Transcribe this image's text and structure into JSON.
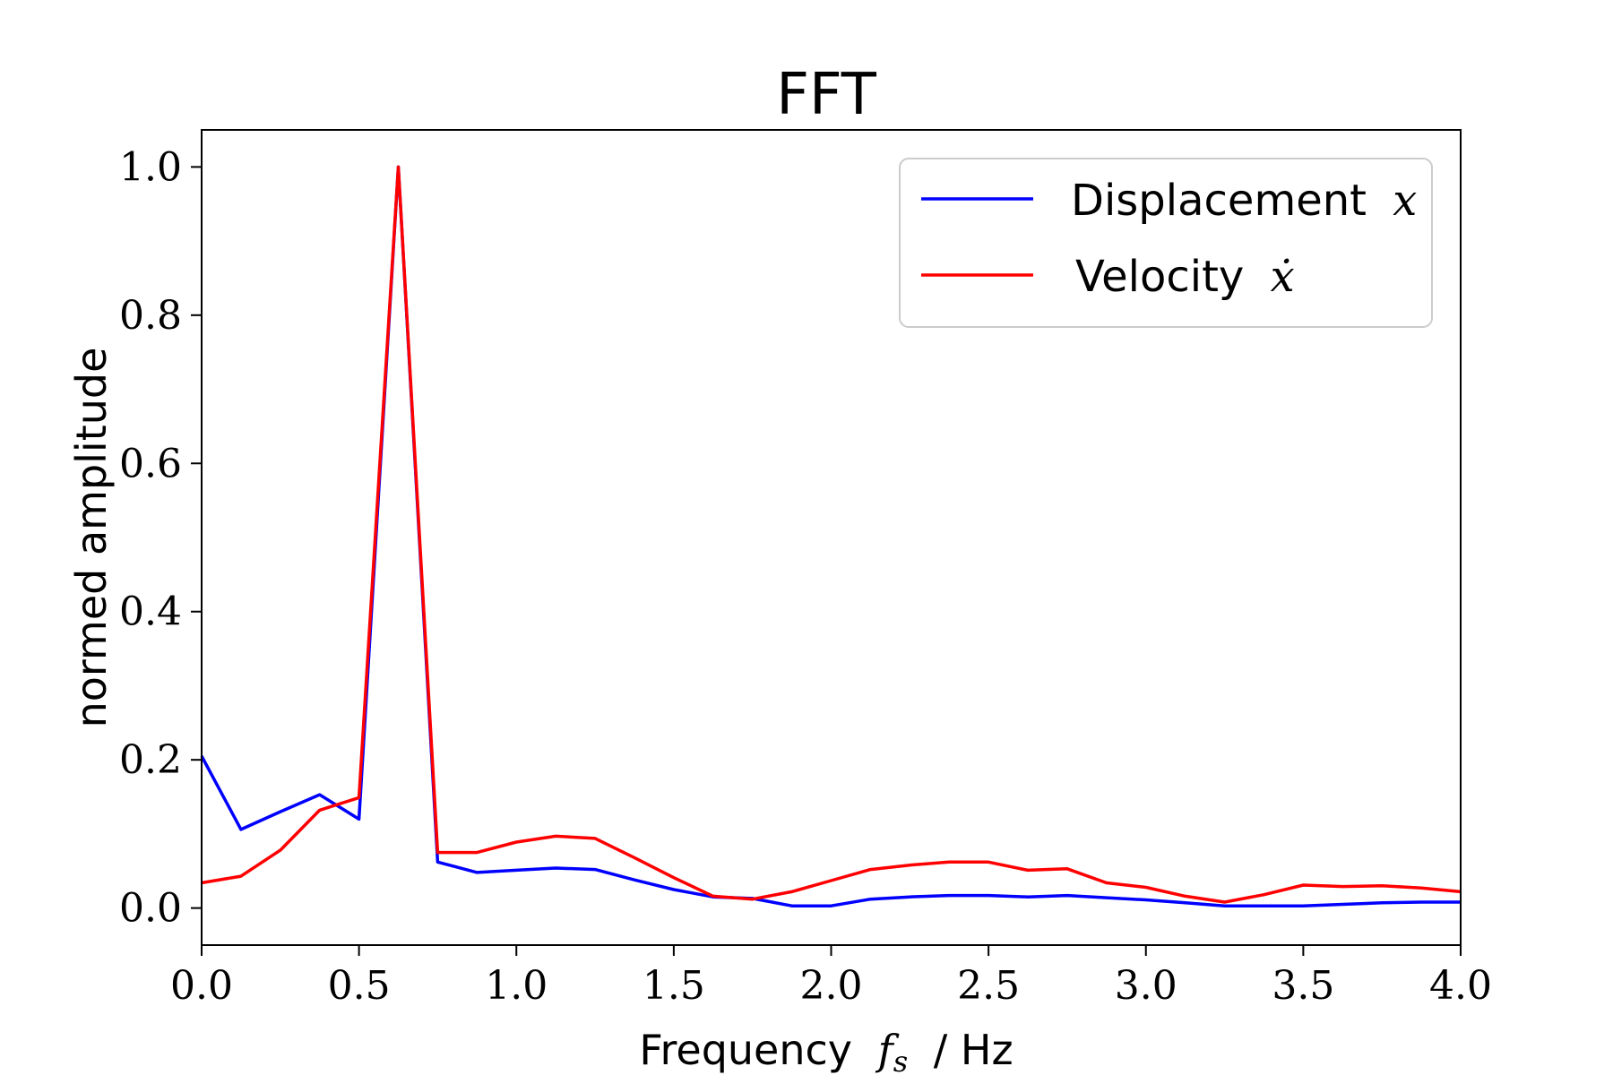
{
  "chart_data": {
    "type": "line",
    "title": "FFT",
    "xlabel_prefix": "Frequency",
    "xlabel_math": "f",
    "xlabel_math_sub": "s",
    "xlabel_suffix": "/ Hz",
    "ylabel": "normed amplitude",
    "xlim": [
      0.0,
      4.0
    ],
    "ylim": [
      -0.05,
      1.05
    ],
    "xticks": [
      0.0,
      0.5,
      1.0,
      1.5,
      2.0,
      2.5,
      3.0,
      3.5,
      4.0
    ],
    "xtick_labels": [
      "0.0",
      "0.5",
      "1.0",
      "1.5",
      "2.0",
      "2.5",
      "3.0",
      "3.5",
      "4.0"
    ],
    "yticks": [
      0.0,
      0.2,
      0.4,
      0.6,
      0.8,
      1.0
    ],
    "ytick_labels": [
      "0.0",
      "0.2",
      "0.4",
      "0.6",
      "0.8",
      "1.0"
    ],
    "grid": false,
    "legend_position": "top-right",
    "x": [
      0.0,
      0.125,
      0.25,
      0.375,
      0.5,
      0.625,
      0.75,
      0.875,
      1.0,
      1.125,
      1.25,
      1.375,
      1.5,
      1.625,
      1.75,
      1.875,
      2.0,
      2.125,
      2.25,
      2.375,
      2.5,
      2.625,
      2.75,
      2.875,
      3.0,
      3.125,
      3.25,
      3.375,
      3.5,
      3.625,
      3.75,
      3.875,
      4.0
    ],
    "series": [
      {
        "name": "Displacement",
        "name_math": "x",
        "color": "#0000ff",
        "values": [
          0.205,
          0.106,
          0.13,
          0.153,
          0.12,
          1.0,
          0.062,
          0.048,
          0.051,
          0.054,
          0.052,
          0.038,
          0.025,
          0.015,
          0.013,
          0.003,
          0.003,
          0.012,
          0.015,
          0.017,
          0.017,
          0.015,
          0.017,
          0.014,
          0.011,
          0.007,
          0.003,
          0.003,
          0.003,
          0.005,
          0.007,
          0.008,
          0.008
        ]
      },
      {
        "name": "Velocity",
        "name_math": "ẋ",
        "color": "#ff0000",
        "values": [
          0.034,
          0.043,
          0.078,
          0.132,
          0.149,
          1.0,
          0.075,
          0.075,
          0.089,
          0.097,
          0.094,
          0.068,
          0.041,
          0.016,
          0.012,
          0.022,
          0.037,
          0.052,
          0.058,
          0.062,
          0.062,
          0.051,
          0.053,
          0.034,
          0.028,
          0.016,
          0.008,
          0.018,
          0.031,
          0.029,
          0.03,
          0.027,
          0.022
        ]
      }
    ]
  }
}
